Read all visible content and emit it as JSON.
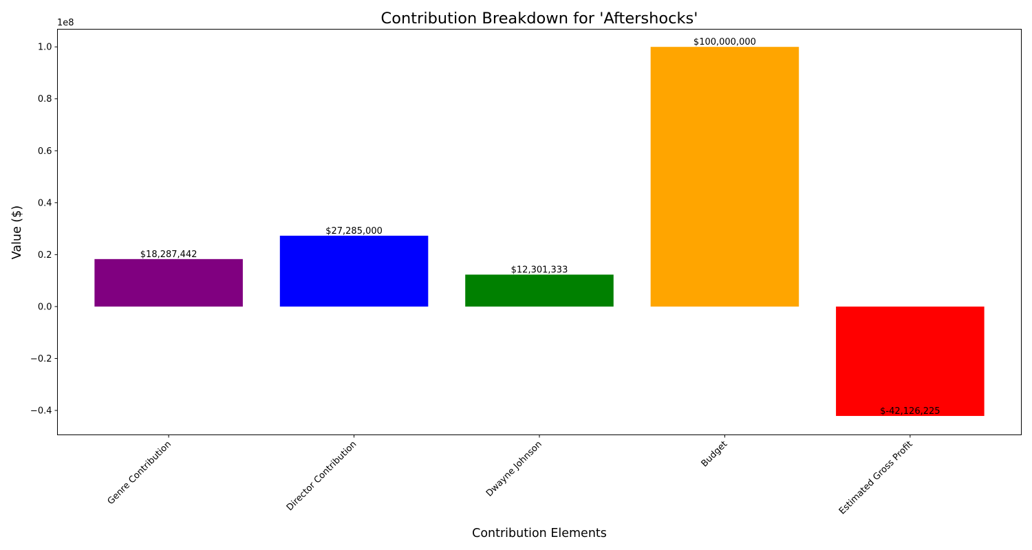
{
  "chart_data": {
    "type": "bar",
    "title": "Contribution Breakdown for 'Aftershocks'",
    "xlabel": "Contribution Elements",
    "ylabel": "Value ($)",
    "y_scale_label": "1e8",
    "categories": [
      "Genre Contribution",
      "Director Contribution",
      "Dwayne Johnson",
      "Budget",
      "Estimated Gross Profit"
    ],
    "values": [
      18287442,
      27285000,
      12301333,
      100000000,
      -42126225
    ],
    "value_labels": [
      "$18,287,442",
      "$27,285,000",
      "$12,301,333",
      "$100,000,000",
      "$-42,126,225"
    ],
    "colors": [
      "#800080",
      "#0000ff",
      "#008000",
      "#ffa500",
      "#ff0000"
    ],
    "ylim": [
      -49400000,
      106800000
    ],
    "yticks": [
      -40000000,
      -20000000,
      0,
      20000000,
      40000000,
      60000000,
      80000000,
      100000000
    ],
    "ytick_labels": [
      "−0.4",
      "−0.2",
      "0.0",
      "0.2",
      "0.4",
      "0.6",
      "0.8",
      "1.0"
    ],
    "grid": false,
    "legend": "none"
  }
}
